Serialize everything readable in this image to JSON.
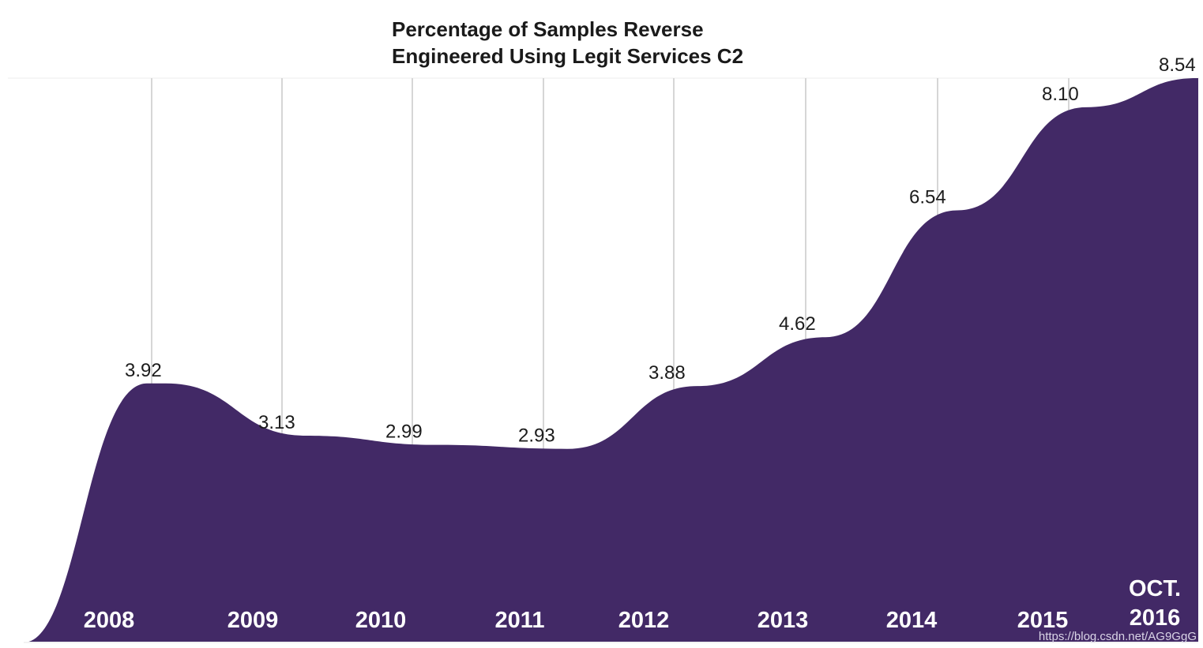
{
  "chart_data": {
    "type": "area",
    "title": [
      "Percentage of Samples Reverse",
      "Engineered Using Legit Services C2"
    ],
    "categories": [
      "2008",
      "2009",
      "2010",
      "2011",
      "2012",
      "2013",
      "2014",
      "2015",
      [
        "OCT.",
        "2016"
      ]
    ],
    "series": [
      {
        "name": "Percentage of samples",
        "values": [
          3.92,
          3.13,
          2.99,
          2.93,
          3.88,
          4.62,
          6.54,
          8.1,
          8.54
        ],
        "labels": [
          "3.92",
          "3.13",
          "2.99",
          "2.93",
          "3.88",
          "4.62",
          "6.54",
          "8.10",
          "8.54"
        ]
      }
    ],
    "ylim": [
      0,
      8.54
    ],
    "grid": "vertical",
    "fill_color": "#422966",
    "grid_color": "#d6d6d6"
  },
  "watermark": "https://blog.csdn.net/AG9GgG"
}
